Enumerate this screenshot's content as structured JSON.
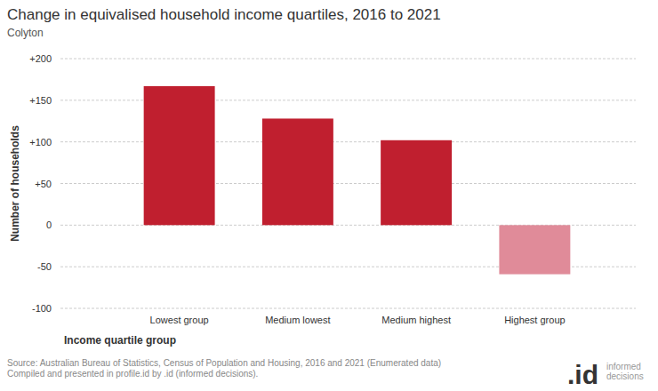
{
  "chart_data": {
    "type": "bar",
    "title": "Change in equivalised household income quartiles, 2016 to 2021",
    "subtitle": "Colyton",
    "x_label": "Income quartile group",
    "y_label": "Number of households",
    "categories": [
      "Lowest group",
      "Medium lowest",
      "Medium highest",
      "Highest group"
    ],
    "values": [
      167,
      128,
      102,
      -59
    ],
    "colors": [
      "#c01f2f",
      "#c01f2f",
      "#c01f2f",
      "#e08b99"
    ],
    "ylim": [
      -100,
      200
    ],
    "yticks": [
      {
        "value": 200,
        "label": "+200"
      },
      {
        "value": 150,
        "label": "+150"
      },
      {
        "value": 100,
        "label": "+100"
      },
      {
        "value": 50,
        "label": "+50"
      },
      0,
      -50,
      -100
    ],
    "grid": true,
    "source": [
      "Source: Australian Bureau of Statistics, Census of Population and Housing, 2016 and 2021 (Enumerated data)",
      "Compiled and presented in profile.id by .id (informed decisions)."
    ],
    "logo_mark": ".id",
    "logo_text": [
      "informed",
      "decisions"
    ]
  }
}
